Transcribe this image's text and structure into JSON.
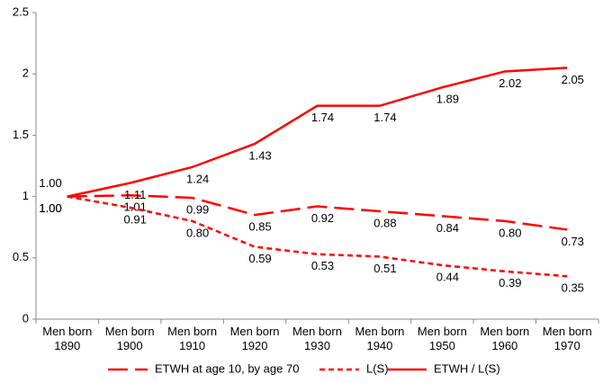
{
  "chart_data": {
    "type": "line",
    "categories": [
      "Men born 1890",
      "Men born 1900",
      "Men born 1910",
      "Men born 1920",
      "Men born 1930",
      "Men born 1940",
      "Men born 1950",
      "Men born 1960",
      "Men born 1970"
    ],
    "series": [
      {
        "name": "ETWH at age 10, by age 70",
        "color": "#ff0000",
        "dash": "22 8",
        "values": [
          1.0,
          1.01,
          0.99,
          0.85,
          0.92,
          0.88,
          0.84,
          0.8,
          0.73
        ],
        "value_labels": [
          "1.00",
          "1.01",
          "0.99",
          "0.85",
          "0.92",
          "0.88",
          "0.84",
          "0.80",
          "0.73"
        ]
      },
      {
        "name": "L(S)",
        "color": "#ff0000",
        "dash": "6 4",
        "values": [
          1.0,
          0.91,
          0.8,
          0.59,
          0.53,
          0.51,
          0.44,
          0.39,
          0.35
        ],
        "value_labels": [
          "1.00",
          "0.91",
          "0.80",
          "0.59",
          "0.53",
          "0.51",
          "0.44",
          "0.39",
          "0.35"
        ]
      },
      {
        "name": "ETWH / L(S)",
        "color": "#ff0000",
        "dash": "none",
        "values": [
          1.0,
          1.11,
          1.24,
          1.43,
          1.74,
          1.74,
          1.89,
          2.02,
          2.05
        ],
        "value_labels": [
          "1.00",
          "1.11",
          "1.24",
          "1.43",
          "1.74",
          "1.74",
          "1.89",
          "2.02",
          "2.05"
        ]
      }
    ],
    "ylim": [
      0,
      2.5
    ],
    "yticks": [
      0,
      0.5,
      1,
      1.5,
      2,
      2.5
    ],
    "grid": false
  }
}
